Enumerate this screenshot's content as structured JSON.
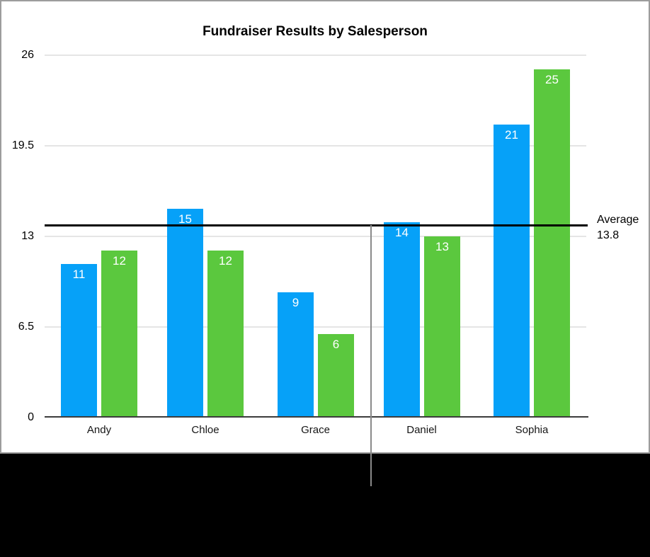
{
  "chart_data": {
    "type": "bar",
    "title": "Fundraiser Results by Salesperson",
    "categories": [
      "Andy",
      "Chloe",
      "Grace",
      "Daniel",
      "Sophia"
    ],
    "series": [
      {
        "color": "#06a1f8",
        "values": [
          11,
          15,
          9,
          14,
          21
        ]
      },
      {
        "color": "#5bc83e",
        "values": [
          12,
          12,
          6,
          13,
          25
        ]
      }
    ],
    "ylim": [
      0,
      26
    ],
    "y_ticks": [
      0,
      6.5,
      13,
      19.5,
      26
    ],
    "y_tick_labels": [
      "0",
      "6.5",
      "13",
      "19.5",
      "26"
    ],
    "grid": true,
    "legend": "none",
    "bar_value_labels": [
      11,
      12,
      15,
      12,
      9,
      6,
      14,
      13,
      21,
      25
    ],
    "bar_value_label_color": "#ffffff",
    "average_line": {
      "value": 13.8,
      "color": "#000000",
      "label_line1": "Average",
      "label_line2": "13.8"
    }
  },
  "figure": {
    "panel_background": "#ffffff",
    "border_color": "#9c9c9c",
    "bottom_region_color": "#000000",
    "callout_line_color": "#8a8a8a"
  }
}
